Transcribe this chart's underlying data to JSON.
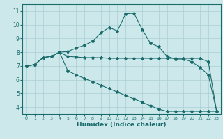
{
  "xlabel": "Humidex (Indice chaleur)",
  "xlim": [
    -0.5,
    23.5
  ],
  "ylim": [
    3.5,
    11.5
  ],
  "xticks": [
    0,
    1,
    2,
    3,
    4,
    5,
    6,
    7,
    8,
    9,
    10,
    11,
    12,
    13,
    14,
    15,
    16,
    17,
    18,
    19,
    20,
    21,
    22,
    23
  ],
  "yticks": [
    4,
    5,
    6,
    7,
    8,
    9,
    10,
    11
  ],
  "bg_color": "#cce8eb",
  "grid_color": "#aacdd2",
  "line_color": "#1a6b6b",
  "line1_x": [
    0,
    1,
    2,
    3,
    4,
    5,
    6,
    7,
    8,
    9,
    10,
    11,
    12,
    13,
    14,
    15,
    16,
    17,
    18,
    19,
    20,
    21,
    22,
    23
  ],
  "line1_y": [
    7.0,
    7.1,
    7.6,
    7.7,
    8.0,
    8.05,
    8.3,
    8.5,
    8.8,
    9.4,
    9.8,
    9.55,
    10.8,
    10.85,
    9.65,
    8.65,
    8.4,
    7.7,
    7.5,
    7.5,
    7.3,
    6.9,
    6.35,
    3.7
  ],
  "line2_x": [
    0,
    1,
    2,
    3,
    4,
    5,
    6,
    7,
    8,
    9,
    10,
    11,
    12,
    13,
    14,
    15,
    16,
    17,
    18,
    19,
    20,
    21,
    22,
    23
  ],
  "line2_y": [
    7.0,
    7.1,
    7.6,
    7.7,
    8.0,
    6.65,
    6.35,
    6.1,
    5.85,
    5.6,
    5.35,
    5.1,
    4.85,
    4.6,
    4.35,
    4.1,
    3.85,
    3.7,
    3.7,
    3.7,
    3.7,
    3.7,
    3.7,
    3.7
  ],
  "line3_x": [
    0,
    1,
    2,
    3,
    4,
    5,
    6,
    7,
    8,
    9,
    10,
    11,
    12,
    13,
    14,
    15,
    16,
    17,
    18,
    19,
    20,
    21,
    22,
    23
  ],
  "line3_y": [
    7.0,
    7.1,
    7.6,
    7.7,
    8.0,
    7.7,
    7.65,
    7.6,
    7.6,
    7.6,
    7.55,
    7.55,
    7.55,
    7.55,
    7.55,
    7.55,
    7.55,
    7.55,
    7.55,
    7.55,
    7.55,
    7.55,
    7.3,
    3.7
  ]
}
